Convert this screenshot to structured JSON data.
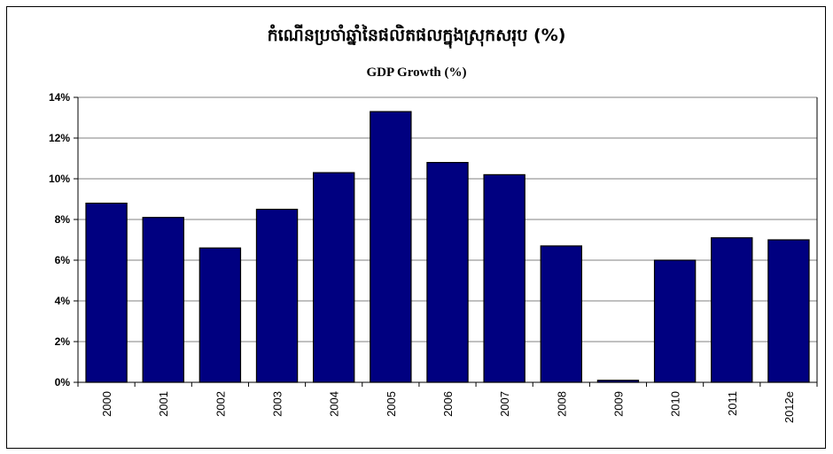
{
  "chart_data": {
    "type": "bar",
    "title": "កំណើនប្រចាំឆ្នាំនៃផលិតផលក្នុងស្រុកសរុប (%)",
    "subtitle": "GDP Growth (%)",
    "xlabel": "",
    "ylabel": "",
    "categories": [
      "2000",
      "2001",
      "2002",
      "2003",
      "2004",
      "2005",
      "2006",
      "2007",
      "2008",
      "2009",
      "2010",
      "2011",
      "2012e"
    ],
    "values": [
      8.8,
      8.1,
      6.6,
      8.5,
      10.3,
      13.3,
      10.8,
      10.2,
      6.7,
      0.1,
      6.0,
      7.1,
      7.0
    ],
    "ylim": [
      0,
      14
    ],
    "yticks": [
      0,
      2,
      4,
      6,
      8,
      10,
      12,
      14
    ],
    "ytick_labels": [
      "0%",
      "2%",
      "4%",
      "6%",
      "8%",
      "10%",
      "12%",
      "14%"
    ],
    "grid": true,
    "legend": "none",
    "bar_color": "#000080"
  }
}
